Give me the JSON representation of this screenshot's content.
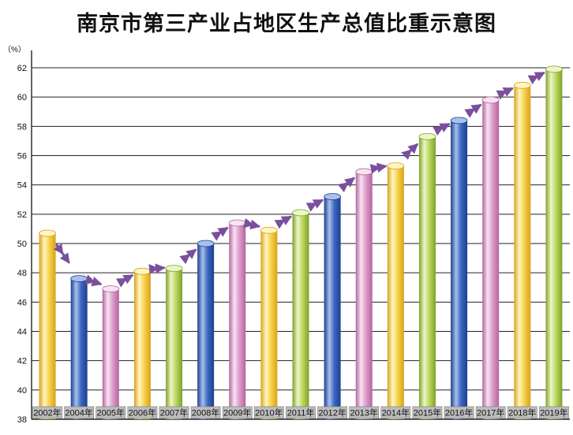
{
  "chart_data": {
    "type": "bar",
    "title": "南京市第三产业占地区生产总值比重示意图",
    "ylabel": "（%）",
    "ylim": [
      38,
      62
    ],
    "yticks": [
      38,
      40,
      42,
      44,
      46,
      48,
      50,
      52,
      54,
      56,
      58,
      60,
      62
    ],
    "categories": [
      "2002年",
      "2004年",
      "2005年",
      "2006年",
      "2007年",
      "2008年",
      "2009年",
      "2010年",
      "2011年",
      "2012年",
      "2013年",
      "2014年",
      "2015年",
      "2016年",
      "2017年",
      "2018年",
      "2019年"
    ],
    "values": [
      50.7,
      47.6,
      46.9,
      48.1,
      48.3,
      50.0,
      51.4,
      50.9,
      52.1,
      53.2,
      54.9,
      55.3,
      57.3,
      58.4,
      59.8,
      60.8,
      61.9
    ],
    "bar_colors": [
      "yellow",
      "blue",
      "pink",
      "yellow",
      "green",
      "blue",
      "pink",
      "yellow",
      "green",
      "blue",
      "pink",
      "yellow",
      "green",
      "blue",
      "pink",
      "yellow",
      "green"
    ],
    "grid": true,
    "trend_arrows": true
  },
  "colors": {
    "yellow": {
      "dark": "#d9a21a",
      "mid": "#f6d24a",
      "light": "#fff5c2"
    },
    "blue": {
      "dark": "#1c3f8f",
      "mid": "#3c67bf",
      "light": "#a9c0ec"
    },
    "pink": {
      "dark": "#b3659f",
      "mid": "#dc9ccb",
      "light": "#f7e4f1"
    },
    "green": {
      "dark": "#7ea12e",
      "mid": "#b9d75c",
      "light": "#eef6c6"
    },
    "arrow": "#7b4f9c",
    "label_bg": "#bdbdbd"
  }
}
